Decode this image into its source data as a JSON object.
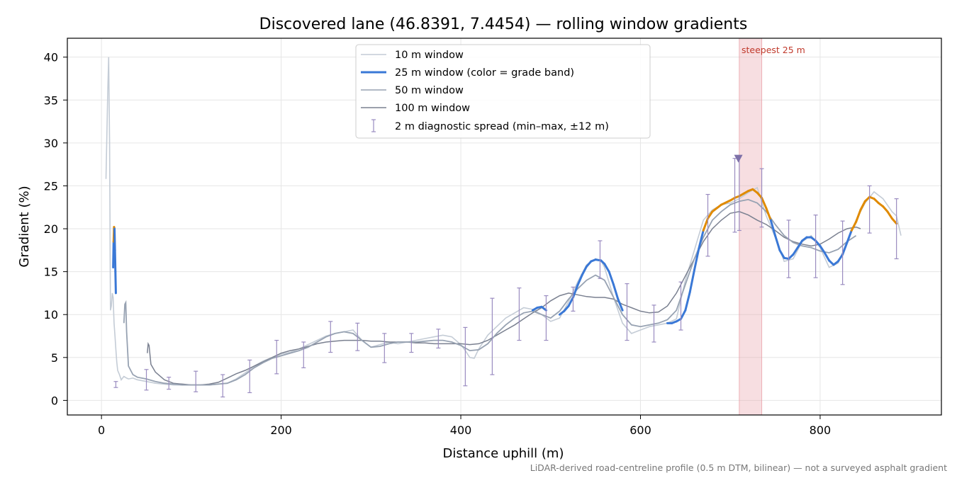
{
  "chart_data": {
    "type": "line",
    "title": "Discovered lane (46.8391, 7.4454) — rolling window gradients",
    "xlabel": "Distance uphill (m)",
    "ylabel": "Gradient (%)",
    "xlim": [
      -38,
      935
    ],
    "ylim": [
      -1.7,
      42.2
    ],
    "xticks": [
      0,
      200,
      400,
      600,
      800
    ],
    "yticks": [
      0,
      5,
      10,
      15,
      20,
      25,
      30,
      35,
      40
    ],
    "grid": true,
    "legend_position": "top-center",
    "footnote": "LiDAR-derived road-centreline profile (0.5 m DTM, bilinear) — not a surveyed asphalt gradient",
    "highlight": {
      "label": "steepest 25 m",
      "x_range": [
        710,
        735
      ],
      "color": "#e8a0a8",
      "marker_x": 709,
      "marker_y": 28.2
    },
    "colors": {
      "w10": "#c4ccd6",
      "w25_moderate": "#3a78d6",
      "w25_steep": "#e08a00",
      "w50": "#97a2b2",
      "w100": "#7a8090",
      "spread": "#9a8cc0",
      "gentle": "#97a2b2"
    },
    "series": [
      {
        "name": "10 m window",
        "x": [
          5,
          7,
          8,
          9,
          10,
          11,
          12,
          13,
          14,
          15,
          16,
          17,
          18,
          20,
          22,
          25,
          28,
          30,
          35,
          40,
          50,
          60,
          70,
          80,
          90,
          100,
          110,
          120,
          130,
          140,
          150,
          160,
          170,
          180,
          190,
          200,
          210,
          220,
          230,
          240,
          250,
          260,
          270,
          280,
          285,
          290,
          300,
          310,
          320,
          330,
          340,
          350,
          360,
          370,
          380,
          390,
          400,
          405,
          410,
          415,
          420,
          430,
          440,
          450,
          460,
          470,
          480,
          490,
          500,
          510,
          520,
          530,
          540,
          550,
          556,
          560,
          570,
          580,
          590,
          600,
          610,
          620,
          630,
          640,
          650,
          660,
          670,
          680,
          690,
          700,
          710,
          720,
          730,
          740,
          750,
          760,
          770,
          780,
          790,
          800,
          810,
          820,
          830,
          840,
          850,
          860,
          870,
          880,
          885,
          890
        ],
        "y": [
          25.8,
          36,
          40,
          30,
          10.5,
          11,
          12.5,
          12,
          9,
          7.5,
          6,
          4.5,
          3.5,
          3,
          2.4,
          2.8,
          2.6,
          2.5,
          2.6,
          2.4,
          2.2,
          2.0,
          1.9,
          1.8,
          1.8,
          1.8,
          1.8,
          1.8,
          1.9,
          2.0,
          2.5,
          3.2,
          4.0,
          4.6,
          5.0,
          5.4,
          5.6,
          6.0,
          6.5,
          7.0,
          7.5,
          7.8,
          8.0,
          8.2,
          7.6,
          7.0,
          6.2,
          6.5,
          6.8,
          6.6,
          6.8,
          7.0,
          7.2,
          7.4,
          7.6,
          7.4,
          6.5,
          5.8,
          5.0,
          4.9,
          6.0,
          7.6,
          8.6,
          9.6,
          10.2,
          10.8,
          10.6,
          10.0,
          9.2,
          9.6,
          11.5,
          13.8,
          15.8,
          16.5,
          16.3,
          15.5,
          12.0,
          9.0,
          7.8,
          8.2,
          8.6,
          8.8,
          9.0,
          9.5,
          14.0,
          17.5,
          21.0,
          22.2,
          22.8,
          23.0,
          23.5,
          24.2,
          24.8,
          21.5,
          19.0,
          16.2,
          16.5,
          18.5,
          19.2,
          17.8,
          15.5,
          16.0,
          18.5,
          21.0,
          23.0,
          24.3,
          23.5,
          22.0,
          21.5,
          19.2
        ]
      },
      {
        "name": "25 m window (color = grade band)",
        "x": [
          13,
          13.5,
          14,
          14.5,
          15,
          15.5,
          16,
          480,
          485,
          490,
          495,
          510,
          515,
          520,
          525,
          530,
          535,
          540,
          545,
          550,
          556,
          560,
          565,
          570,
          575,
          580,
          630,
          635,
          640,
          645,
          650,
          655,
          660,
          665,
          670,
          675,
          680,
          690,
          700,
          705,
          710,
          715,
          720,
          725,
          730,
          735,
          740,
          745,
          750,
          755,
          760,
          765,
          770,
          775,
          780,
          785,
          790,
          795,
          800,
          805,
          810,
          815,
          820,
          825,
          830,
          835,
          840,
          845,
          850,
          855,
          860,
          865,
          870,
          875,
          880,
          885
        ],
        "y": [
          15.5,
          18.5,
          20.2,
          20,
          17.5,
          15,
          12.5,
          10.5,
          10.8,
          10.9,
          10.5,
          10.0,
          10.4,
          11.0,
          12.0,
          13.4,
          14.6,
          15.6,
          16.2,
          16.4,
          16.3,
          15.9,
          15.0,
          13.5,
          11.8,
          10.5,
          9.0,
          9.0,
          9.2,
          9.5,
          10.5,
          12.6,
          15.2,
          17.7,
          19.8,
          21.2,
          22.0,
          22.8,
          23.3,
          23.6,
          23.8,
          24.1,
          24.4,
          24.6,
          24.2,
          23.6,
          22.4,
          21.0,
          19.2,
          17.5,
          16.6,
          16.5,
          17.0,
          17.8,
          18.6,
          19.0,
          19.0,
          18.6,
          18.0,
          17.2,
          16.3,
          15.8,
          16.2,
          17.0,
          18.4,
          19.8,
          20.8,
          22.2,
          23.2,
          23.7,
          23.5,
          23.0,
          22.6,
          22.0,
          21.2,
          20.6
        ],
        "color_band": [
          "moderate",
          "moderate",
          "steep",
          "steep",
          "moderate",
          "moderate",
          "moderate",
          "moderate",
          "moderate",
          "moderate",
          "moderate",
          "moderate",
          "moderate",
          "moderate",
          "moderate",
          "moderate",
          "moderate",
          "moderate",
          "moderate",
          "moderate",
          "moderate",
          "moderate",
          "moderate",
          "moderate",
          "moderate",
          "moderate",
          "moderate",
          "moderate",
          "moderate",
          "moderate",
          "moderate",
          "moderate",
          "moderate",
          "moderate",
          "moderate",
          "steep",
          "steep",
          "steep",
          "steep",
          "steep",
          "steep",
          "steep",
          "steep",
          "steep",
          "steep",
          "steep",
          "steep",
          "steep",
          "moderate",
          "moderate",
          "moderate",
          "moderate",
          "moderate",
          "moderate",
          "moderate",
          "moderate",
          "moderate",
          "moderate",
          "moderate",
          "moderate",
          "moderate",
          "moderate",
          "moderate",
          "moderate",
          "moderate",
          "moderate",
          "steep",
          "steep",
          "steep",
          "steep",
          "steep",
          "steep",
          "steep",
          "steep",
          "steep",
          "steep"
        ]
      },
      {
        "name": "50 m window",
        "x": [
          25,
          26,
          27,
          28,
          30,
          35,
          40,
          50,
          60,
          70,
          80,
          90,
          100,
          110,
          120,
          130,
          140,
          150,
          160,
          170,
          180,
          190,
          200,
          210,
          220,
          230,
          240,
          250,
          260,
          270,
          280,
          290,
          300,
          310,
          320,
          330,
          340,
          350,
          360,
          370,
          380,
          390,
          400,
          410,
          420,
          430,
          440,
          450,
          460,
          470,
          480,
          490,
          500,
          510,
          520,
          530,
          540,
          550,
          560,
          570,
          580,
          590,
          600,
          610,
          620,
          630,
          640,
          650,
          660,
          670,
          680,
          690,
          700,
          710,
          720,
          730,
          740,
          750,
          760,
          770,
          780,
          790,
          800,
          810,
          820,
          830,
          840
        ],
        "y": [
          9.0,
          11.2,
          11.4,
          8.0,
          4.0,
          3.0,
          2.7,
          2.5,
          2.2,
          2.0,
          1.9,
          1.8,
          1.8,
          1.8,
          1.8,
          1.9,
          2.0,
          2.4,
          3.0,
          3.8,
          4.4,
          4.9,
          5.2,
          5.5,
          5.8,
          6.2,
          6.8,
          7.4,
          7.8,
          8.0,
          7.8,
          7.0,
          6.2,
          6.3,
          6.6,
          6.8,
          6.8,
          6.8,
          6.9,
          7.0,
          7.0,
          6.8,
          6.4,
          5.8,
          5.9,
          6.6,
          7.8,
          8.8,
          9.6,
          10.2,
          10.4,
          10.0,
          9.6,
          10.4,
          11.8,
          13.0,
          14.0,
          14.6,
          14.0,
          12.0,
          10.0,
          8.8,
          8.6,
          8.8,
          9.0,
          9.4,
          10.5,
          13.5,
          16.5,
          19.0,
          21.0,
          22.0,
          22.8,
          23.2,
          23.4,
          23.0,
          22.0,
          20.5,
          19.2,
          18.4,
          18.0,
          17.8,
          17.4,
          17.2,
          17.6,
          18.5,
          19.2
        ]
      },
      {
        "name": "100 m window",
        "x": [
          51,
          52,
          53,
          55,
          60,
          70,
          80,
          90,
          100,
          110,
          120,
          130,
          140,
          150,
          160,
          170,
          180,
          190,
          200,
          210,
          220,
          230,
          240,
          250,
          260,
          270,
          280,
          290,
          300,
          310,
          320,
          330,
          340,
          350,
          360,
          370,
          380,
          390,
          400,
          410,
          420,
          430,
          440,
          450,
          460,
          470,
          480,
          490,
          500,
          510,
          520,
          530,
          540,
          550,
          560,
          570,
          580,
          590,
          600,
          610,
          620,
          630,
          640,
          650,
          660,
          670,
          680,
          690,
          700,
          710,
          720,
          730,
          740,
          750,
          760,
          770,
          780,
          790,
          800,
          810,
          820,
          830,
          840,
          845
        ],
        "y": [
          5.5,
          6.6,
          6.4,
          4.2,
          3.3,
          2.4,
          2.0,
          1.9,
          1.8,
          1.8,
          1.9,
          2.1,
          2.6,
          3.1,
          3.5,
          4.0,
          4.5,
          5.0,
          5.5,
          5.8,
          6.0,
          6.3,
          6.6,
          6.8,
          6.9,
          7.0,
          7.0,
          7.0,
          6.9,
          6.9,
          6.8,
          6.8,
          6.8,
          6.7,
          6.7,
          6.6,
          6.6,
          6.6,
          6.6,
          6.5,
          6.6,
          7.0,
          7.6,
          8.2,
          8.8,
          9.5,
          10.2,
          10.8,
          11.6,
          12.2,
          12.5,
          12.3,
          12.1,
          12.0,
          12.0,
          11.8,
          11.2,
          10.8,
          10.4,
          10.2,
          10.3,
          11.0,
          12.5,
          14.5,
          16.5,
          18.5,
          20.0,
          21.0,
          21.8,
          22.0,
          21.6,
          21.0,
          20.5,
          19.8,
          19.0,
          18.5,
          18.2,
          18.0,
          18.2,
          18.8,
          19.5,
          20.0,
          20.2,
          20.0
        ]
      }
    ],
    "error_bars": {
      "name": "2 m diagnostic spread (min–max, ±12 m)",
      "x": [
        16,
        50,
        75,
        105,
        135,
        165,
        195,
        225,
        255,
        285,
        315,
        345,
        375,
        405,
        435,
        465,
        495,
        525,
        555,
        585,
        615,
        645,
        675,
        705,
        710,
        735,
        765,
        795,
        825,
        855,
        885
      ],
      "low": [
        1.5,
        1.2,
        1.3,
        1.0,
        0.4,
        0.9,
        3.1,
        3.8,
        5.6,
        5.8,
        4.4,
        5.6,
        6.1,
        1.7,
        3.0,
        7.0,
        7.0,
        10.4,
        14.2,
        7.0,
        6.8,
        8.2,
        16.8,
        19.6,
        19.8,
        20.2,
        14.3,
        14.3,
        13.5,
        19.5,
        16.5
      ],
      "high": [
        2.2,
        3.6,
        2.7,
        3.4,
        3.0,
        4.7,
        7.0,
        6.8,
        9.2,
        9.0,
        7.8,
        7.8,
        8.3,
        8.5,
        11.9,
        13.1,
        12.2,
        13.2,
        18.6,
        13.6,
        11.1,
        13.8,
        24.0,
        28.2,
        28.4,
        27.0,
        21.0,
        21.6,
        20.9,
        25.0,
        23.5
      ]
    }
  }
}
